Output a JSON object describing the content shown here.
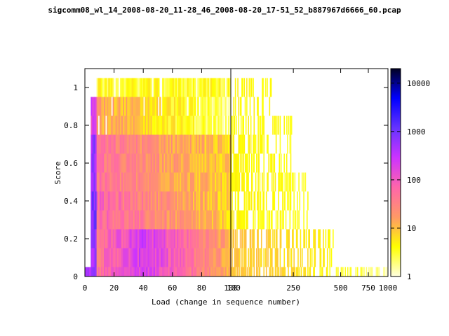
{
  "chart_data": {
    "type": "heatmap",
    "title": "sigcomm08_wl_14_2008-08-20_11-28_46_2008-08-20_17-51_52_b887967d6666_60.pcap",
    "xlabel": "Load (change in sequence number)",
    "ylabel": "Score",
    "ylim": [
      0,
      1.1
    ],
    "y_ticks": [
      "0",
      "0.2",
      "0.4",
      "0.6",
      "0.8",
      "1"
    ],
    "x_ticks_linear": [
      "0",
      "20",
      "40",
      "60",
      "80",
      "100"
    ],
    "x_ticks_log": [
      "100",
      "250",
      "500",
      "750",
      "1000"
    ],
    "left_panel_xlim": [
      0,
      100
    ],
    "right_panel_xlim": [
      100,
      1000
    ],
    "colorbar": {
      "scale": "log",
      "range": [
        1,
        20000
      ],
      "ticks": [
        "1",
        "10",
        "100",
        "1000",
        "10000"
      ],
      "colors": [
        "#ffffe0",
        "#ffff00",
        "#ff9966",
        "#ff66aa",
        "#cc33ff",
        "#6633ff",
        "#0000ff",
        "#000022"
      ]
    },
    "grid": false
  }
}
